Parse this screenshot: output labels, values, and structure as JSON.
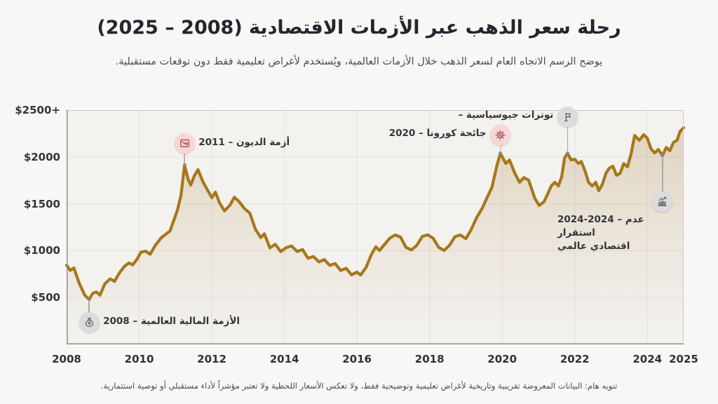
{
  "header": {
    "title": "رحلة سعر الذهب عبر الأزمات الاقتصادية (2008 – 2025)",
    "subtitle": "يوضح الرسم الاتجاه العام لسعر الذهب خلال الأزمات العالمية، ويُستخدم لأغراض تعليمية فقط دون توقعات مستقبلية."
  },
  "footer": {
    "disclaimer": "تنويه هام: البيانات المعروضة تقريبية وتاريخية لأغراض تعليمية وتوضيحية فقط، ولا تعكس الأسعار اللحظية ولا تعتبر مؤشراً لأداء مستقبلي أو توصية استثمارية."
  },
  "colors": {
    "line_gold": "#a6771b",
    "area_fill": "#b9935a",
    "plot_bg": "#f3f2ef",
    "grid": "#e3e1dd",
    "axis": "#908e89",
    "annotation_pink_bg": "#f7d6d8",
    "annotation_pink_icon": "#b14a4a",
    "annotation_gray_bg": "#dcdcde",
    "annotation_gray_icon": "#66666c"
  },
  "chart_data": {
    "type": "line",
    "title": "رحلة سعر الذهب عبر الأزمات الاقتصادية (2008 – 2025)",
    "xlabel": "",
    "ylabel": "",
    "xlim": [
      2008,
      2025
    ],
    "ylim": [
      0,
      2500
    ],
    "grid": true,
    "legend": "none",
    "x_ticks": [
      {
        "value": 2008,
        "label": "2008"
      },
      {
        "value": 2010,
        "label": "2010"
      },
      {
        "value": 2012,
        "label": "2012"
      },
      {
        "value": 2014,
        "label": "2014"
      },
      {
        "value": 2016,
        "label": "2016"
      },
      {
        "value": 2018,
        "label": "2018"
      },
      {
        "value": 2020,
        "label": "2020"
      },
      {
        "value": 2022,
        "label": "2022"
      },
      {
        "value": 2024,
        "label": "2024"
      },
      {
        "value": 2025,
        "label": "2025"
      }
    ],
    "y_ticks": [
      {
        "value": 2500,
        "label": "$2500+"
      },
      {
        "value": 2000,
        "label": "$2000"
      },
      {
        "value": 1500,
        "label": "$1500"
      },
      {
        "value": 1000,
        "label": "$1000"
      },
      {
        "value": 500,
        "label": "$500"
      }
    ],
    "series": [
      {
        "name": "gold-price-usd",
        "points": [
          [
            2008.0,
            845
          ],
          [
            2008.1,
            790
          ],
          [
            2008.2,
            815
          ],
          [
            2008.35,
            650
          ],
          [
            2008.5,
            525
          ],
          [
            2008.62,
            480
          ],
          [
            2008.72,
            545
          ],
          [
            2008.82,
            560
          ],
          [
            2008.92,
            525
          ],
          [
            2009.05,
            645
          ],
          [
            2009.2,
            700
          ],
          [
            2009.32,
            672
          ],
          [
            2009.45,
            760
          ],
          [
            2009.6,
            835
          ],
          [
            2009.72,
            870
          ],
          [
            2009.82,
            848
          ],
          [
            2009.95,
            915
          ],
          [
            2010.05,
            985
          ],
          [
            2010.18,
            995
          ],
          [
            2010.3,
            962
          ],
          [
            2010.45,
            1060
          ],
          [
            2010.6,
            1135
          ],
          [
            2010.72,
            1172
          ],
          [
            2010.85,
            1210
          ],
          [
            2010.95,
            1320
          ],
          [
            2011.05,
            1430
          ],
          [
            2011.15,
            1590
          ],
          [
            2011.25,
            1910
          ],
          [
            2011.35,
            1760
          ],
          [
            2011.42,
            1700
          ],
          [
            2011.52,
            1800
          ],
          [
            2011.62,
            1865
          ],
          [
            2011.75,
            1740
          ],
          [
            2011.88,
            1650
          ],
          [
            2012.0,
            1565
          ],
          [
            2012.1,
            1625
          ],
          [
            2012.22,
            1505
          ],
          [
            2012.35,
            1425
          ],
          [
            2012.5,
            1485
          ],
          [
            2012.62,
            1570
          ],
          [
            2012.75,
            1525
          ],
          [
            2012.9,
            1450
          ],
          [
            2013.05,
            1400
          ],
          [
            2013.2,
            1230
          ],
          [
            2013.35,
            1140
          ],
          [
            2013.45,
            1180
          ],
          [
            2013.6,
            1030
          ],
          [
            2013.75,
            1068
          ],
          [
            2013.9,
            990
          ],
          [
            2014.05,
            1032
          ],
          [
            2014.2,
            1050
          ],
          [
            2014.35,
            992
          ],
          [
            2014.5,
            1012
          ],
          [
            2014.65,
            920
          ],
          [
            2014.8,
            938
          ],
          [
            2014.95,
            880
          ],
          [
            2015.1,
            905
          ],
          [
            2015.25,
            843
          ],
          [
            2015.4,
            862
          ],
          [
            2015.55,
            788
          ],
          [
            2015.7,
            812
          ],
          [
            2015.85,
            742
          ],
          [
            2016.0,
            772
          ],
          [
            2016.1,
            740
          ],
          [
            2016.25,
            822
          ],
          [
            2016.4,
            962
          ],
          [
            2016.52,
            1042
          ],
          [
            2016.62,
            1002
          ],
          [
            2016.75,
            1062
          ],
          [
            2016.9,
            1132
          ],
          [
            2017.05,
            1168
          ],
          [
            2017.2,
            1145
          ],
          [
            2017.35,
            1035
          ],
          [
            2017.5,
            1008
          ],
          [
            2017.65,
            1058
          ],
          [
            2017.8,
            1152
          ],
          [
            2017.95,
            1170
          ],
          [
            2018.1,
            1132
          ],
          [
            2018.25,
            1035
          ],
          [
            2018.4,
            1002
          ],
          [
            2018.55,
            1058
          ],
          [
            2018.7,
            1150
          ],
          [
            2018.85,
            1168
          ],
          [
            2019.0,
            1128
          ],
          [
            2019.15,
            1228
          ],
          [
            2019.3,
            1355
          ],
          [
            2019.45,
            1452
          ],
          [
            2019.6,
            1580
          ],
          [
            2019.72,
            1678
          ],
          [
            2019.85,
            1900
          ],
          [
            2019.95,
            2040
          ],
          [
            2020.1,
            1930
          ],
          [
            2020.2,
            1968
          ],
          [
            2020.35,
            1825
          ],
          [
            2020.48,
            1730
          ],
          [
            2020.6,
            1780
          ],
          [
            2020.73,
            1752
          ],
          [
            2020.9,
            1558
          ],
          [
            2021.02,
            1482
          ],
          [
            2021.15,
            1520
          ],
          [
            2021.25,
            1602
          ],
          [
            2021.35,
            1690
          ],
          [
            2021.45,
            1730
          ],
          [
            2021.55,
            1690
          ],
          [
            2021.64,
            1790
          ],
          [
            2021.72,
            1990
          ],
          [
            2021.8,
            2040
          ],
          [
            2021.9,
            1968
          ],
          [
            2022.0,
            1976
          ],
          [
            2022.1,
            1930
          ],
          [
            2022.18,
            1952
          ],
          [
            2022.28,
            1855
          ],
          [
            2022.38,
            1730
          ],
          [
            2022.48,
            1690
          ],
          [
            2022.58,
            1730
          ],
          [
            2022.66,
            1640
          ],
          [
            2022.76,
            1706
          ],
          [
            2022.86,
            1826
          ],
          [
            2022.95,
            1880
          ],
          [
            2023.05,
            1902
          ],
          [
            2023.15,
            1805
          ],
          [
            2023.25,
            1826
          ],
          [
            2023.35,
            1930
          ],
          [
            2023.45,
            1895
          ],
          [
            2023.55,
            2028
          ],
          [
            2023.65,
            2230
          ],
          [
            2023.78,
            2178
          ],
          [
            2023.9,
            2238
          ],
          [
            2024.0,
            2200
          ],
          [
            2024.1,
            2088
          ],
          [
            2024.2,
            2042
          ],
          [
            2024.3,
            2080
          ],
          [
            2024.42,
            2015
          ],
          [
            2024.52,
            2102
          ],
          [
            2024.62,
            2065
          ],
          [
            2024.72,
            2155
          ],
          [
            2024.82,
            2178
          ],
          [
            2024.9,
            2272
          ],
          [
            2025.0,
            2312
          ]
        ]
      }
    ],
    "annotations": [
      {
        "id": "crisis-2008",
        "year": 2008.62,
        "value": 480,
        "label": "2008 – الأزمة المالية العالمية",
        "icon": "money-bag",
        "tone": "gray",
        "circle_offset": 33,
        "label_side": "right"
      },
      {
        "id": "debt-2011",
        "year": 2011.25,
        "value": 1910,
        "label": "2011 – أزمة الديون",
        "icon": "chart-down",
        "tone": "pink",
        "circle_offset": -31,
        "label_side": "right"
      },
      {
        "id": "covid-2020",
        "year": 2019.95,
        "value": 2040,
        "label": "2020 – جائحة كورونا",
        "icon": "virus",
        "tone": "pink",
        "circle_offset": -26,
        "label_side": "left"
      },
      {
        "id": "geo-tensions",
        "year": 2021.8,
        "value": 2040,
        "label": "– توترات جيوسياسية",
        "icon": "geopolitics",
        "tone": "gray",
        "circle_offset": -52,
        "label_side": "left"
      },
      {
        "id": "instability-2024",
        "year": 2024.42,
        "value": 2015,
        "label": "2024-2024 – عدم استقرار",
        "label2": "اقتصادي عالمي",
        "icon": "chart-up",
        "tone": "gray",
        "circle_offset": 66,
        "label_side": "below-left"
      }
    ]
  }
}
